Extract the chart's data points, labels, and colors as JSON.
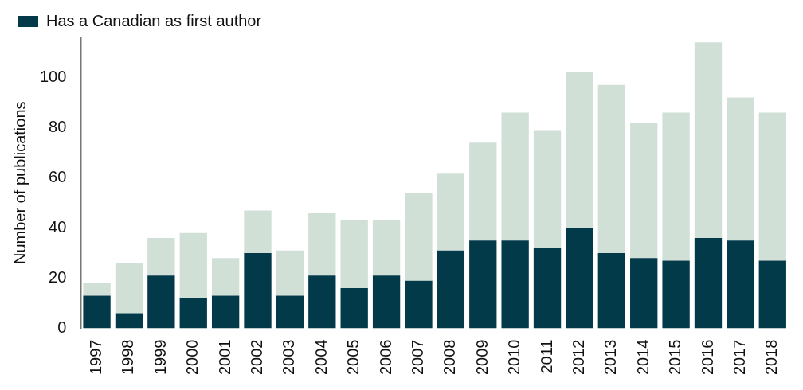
{
  "chart_data": {
    "type": "bar",
    "stacked": true,
    "ylabel": "Number of publications",
    "categories": [
      "1997",
      "1998",
      "1999",
      "2000",
      "2001",
      "2002",
      "2003",
      "2004",
      "2005",
      "2006",
      "2007",
      "2008",
      "2009",
      "2010",
      "2011",
      "2012",
      "2013",
      "2014",
      "2015",
      "2016",
      "2017",
      "2018"
    ],
    "series": [
      {
        "name": "Has a Canadian as first author",
        "color": "#023a49",
        "values": [
          13,
          6,
          21,
          12,
          13,
          30,
          13,
          21,
          16,
          21,
          19,
          31,
          35,
          35,
          32,
          40,
          30,
          28,
          27,
          36,
          35,
          27
        ]
      },
      {
        "color": "#d1e0d7",
        "values": [
          5,
          20,
          15,
          26,
          15,
          17,
          18,
          25,
          27,
          22,
          35,
          31,
          39,
          51,
          47,
          62,
          67,
          54,
          59,
          78,
          57,
          59
        ]
      }
    ],
    "ylim": [
      0,
      116
    ],
    "yticks": [
      0,
      20,
      40,
      60,
      80,
      100
    ],
    "grid": false,
    "legend": "top left"
  }
}
